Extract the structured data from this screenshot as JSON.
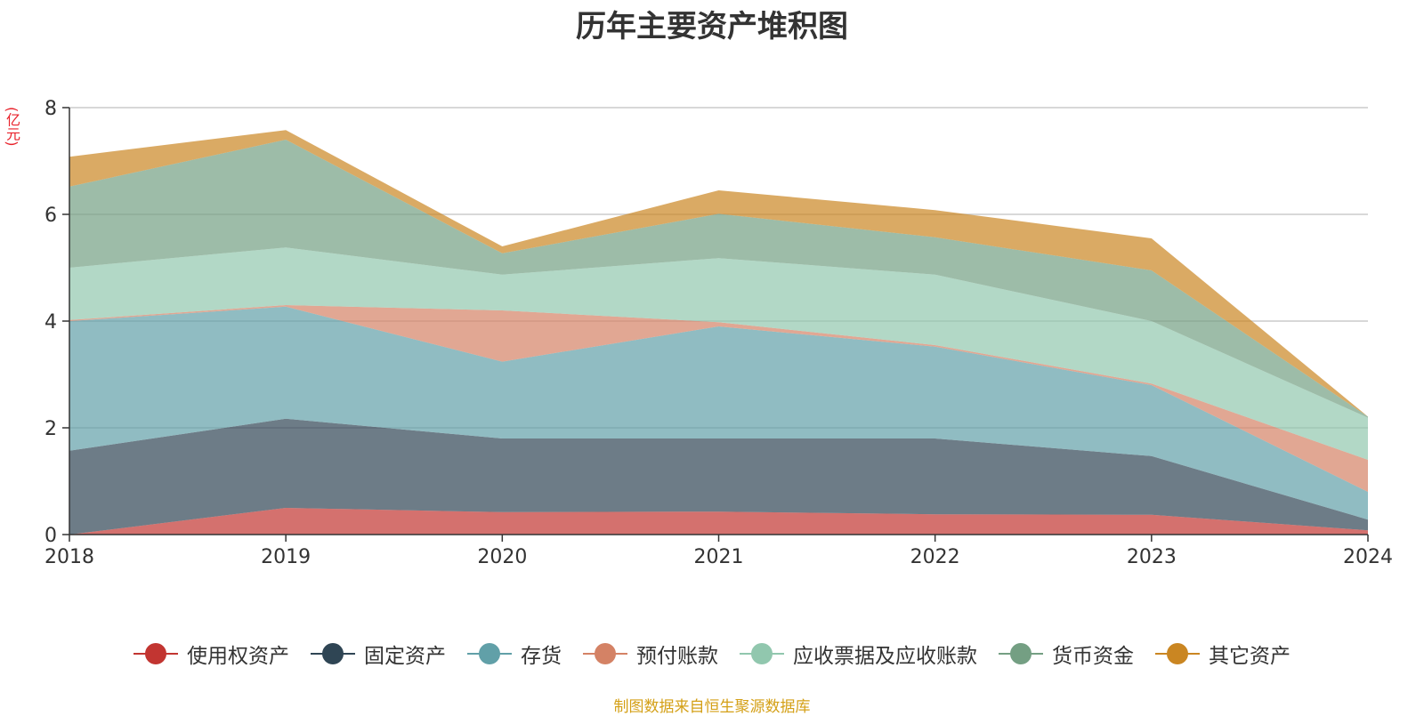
{
  "chart_data": {
    "type": "area",
    "stacked": true,
    "title": "历年主要资产堆积图",
    "ylabel": "(亿元)",
    "xlabel": "",
    "categories": [
      "2018",
      "2019",
      "2020",
      "2021",
      "2022",
      "2023",
      "2024"
    ],
    "ylim": [
      0,
      8
    ],
    "yticks": [
      0,
      2,
      4,
      6,
      8
    ],
    "grid": true,
    "legend_position": "bottom",
    "series": [
      {
        "name": "使用权资产",
        "color": "#c23531",
        "values": [
          0.0,
          0.5,
          0.42,
          0.43,
          0.38,
          0.37,
          0.08
        ]
      },
      {
        "name": "固定资产",
        "color": "#2f4554",
        "values": [
          1.57,
          1.67,
          1.38,
          1.37,
          1.42,
          1.1,
          0.2
        ]
      },
      {
        "name": "存货",
        "color": "#61a0a8",
        "values": [
          2.43,
          2.1,
          1.44,
          2.1,
          1.72,
          1.33,
          0.52
        ]
      },
      {
        "name": "预付账款",
        "color": "#d48265",
        "values": [
          0.02,
          0.03,
          0.96,
          0.08,
          0.03,
          0.03,
          0.6
        ]
      },
      {
        "name": "应收票据及应收账款",
        "color": "#91c7ae",
        "values": [
          0.98,
          1.08,
          0.67,
          1.2,
          1.32,
          1.17,
          0.79
        ]
      },
      {
        "name": "货币资金",
        "color": "#749f83",
        "values": [
          1.52,
          2.02,
          0.4,
          0.83,
          0.7,
          0.95,
          0.02
        ]
      },
      {
        "name": "其它资产",
        "color": "#ca8622",
        "values": [
          0.56,
          0.18,
          0.13,
          0.44,
          0.51,
          0.6,
          0.0
        ]
      }
    ]
  },
  "footer": "制图数据来自恒生聚源数据库"
}
